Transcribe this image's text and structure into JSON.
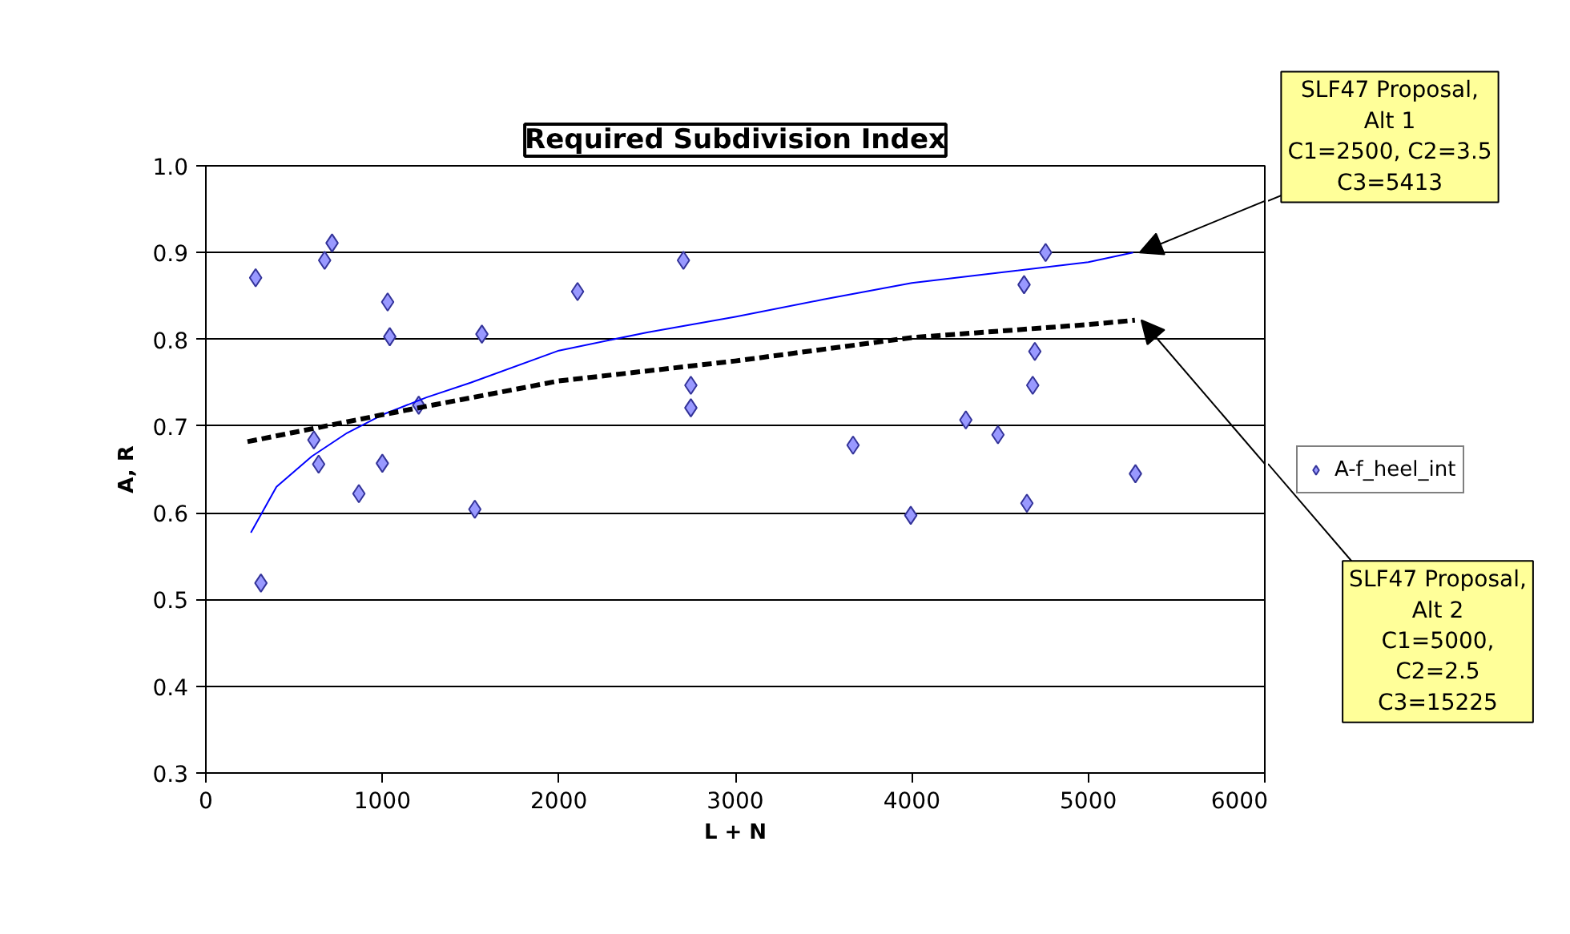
{
  "chart_data": {
    "type": "scatter",
    "title": "Required Subdivision Index",
    "xlabel": "L + N",
    "ylabel": "A, R",
    "xlim": [
      0,
      6000
    ],
    "xticks": [
      0,
      1000,
      2000,
      3000,
      4000,
      5000,
      6000
    ],
    "ylim": [
      0.3,
      1.0
    ],
    "yticks": [
      0.3,
      0.4,
      0.5,
      0.6,
      0.7,
      0.8,
      0.9,
      {
        "value": 1.0,
        "label": "1.0"
      }
    ],
    "grid": "y",
    "legend": "right",
    "marker": "diamond",
    "series": [
      {
        "name": "A-f_heel_int",
        "color": "#9999ff",
        "x": [
          282,
          312,
          612,
          639,
          673,
          715,
          867,
          1000,
          1030,
          1042,
          1206,
          1524,
          1564,
          2106,
          2706,
          2748,
          2748,
          3667,
          3994,
          4306,
          4488,
          4636,
          4697,
          4685,
          4652,
          4758,
          5267
        ],
        "values": [
          0.871,
          0.519,
          0.684,
          0.656,
          0.891,
          0.911,
          0.622,
          0.657,
          0.843,
          0.803,
          0.724,
          0.604,
          0.806,
          0.855,
          0.891,
          0.747,
          0.721,
          0.678,
          0.597,
          0.707,
          0.69,
          0.863,
          0.786,
          0.747,
          0.611,
          0.9,
          0.645
        ]
      },
      {
        "type": "line",
        "color": "#0000ff",
        "line_style": "solid",
        "marker": "none",
        "x": [
          255,
          400,
          600,
          800,
          1000,
          1250,
          1500,
          2000,
          2500,
          3000,
          3500,
          4000,
          4500,
          5000,
          5254
        ],
        "values": [
          0.577,
          0.63,
          0.665,
          0.692,
          0.713,
          0.733,
          0.75,
          0.787,
          0.808,
          0.826,
          0.846,
          0.865,
          0.877,
          0.889,
          0.9
        ]
      },
      {
        "type": "line",
        "color": "#000000",
        "line_style": "dashed",
        "marker": "none",
        "x": [
          236,
          1000,
          2000,
          3000,
          4000,
          5000,
          5264
        ],
        "values": [
          0.682,
          0.713,
          0.752,
          0.775,
          0.802,
          0.817,
          0.822
        ]
      }
    ],
    "annotations": [
      {
        "text": "SLF47 Proposal,\nAlt 1\nC1=2500, C2=3.5\nC3=5413",
        "x": 5254,
        "y": 0.9
      },
      "SLF47 Proposal,\nAlt 2\nC1=5000,\nC2=2.5\nC3=15225"
    ]
  }
}
